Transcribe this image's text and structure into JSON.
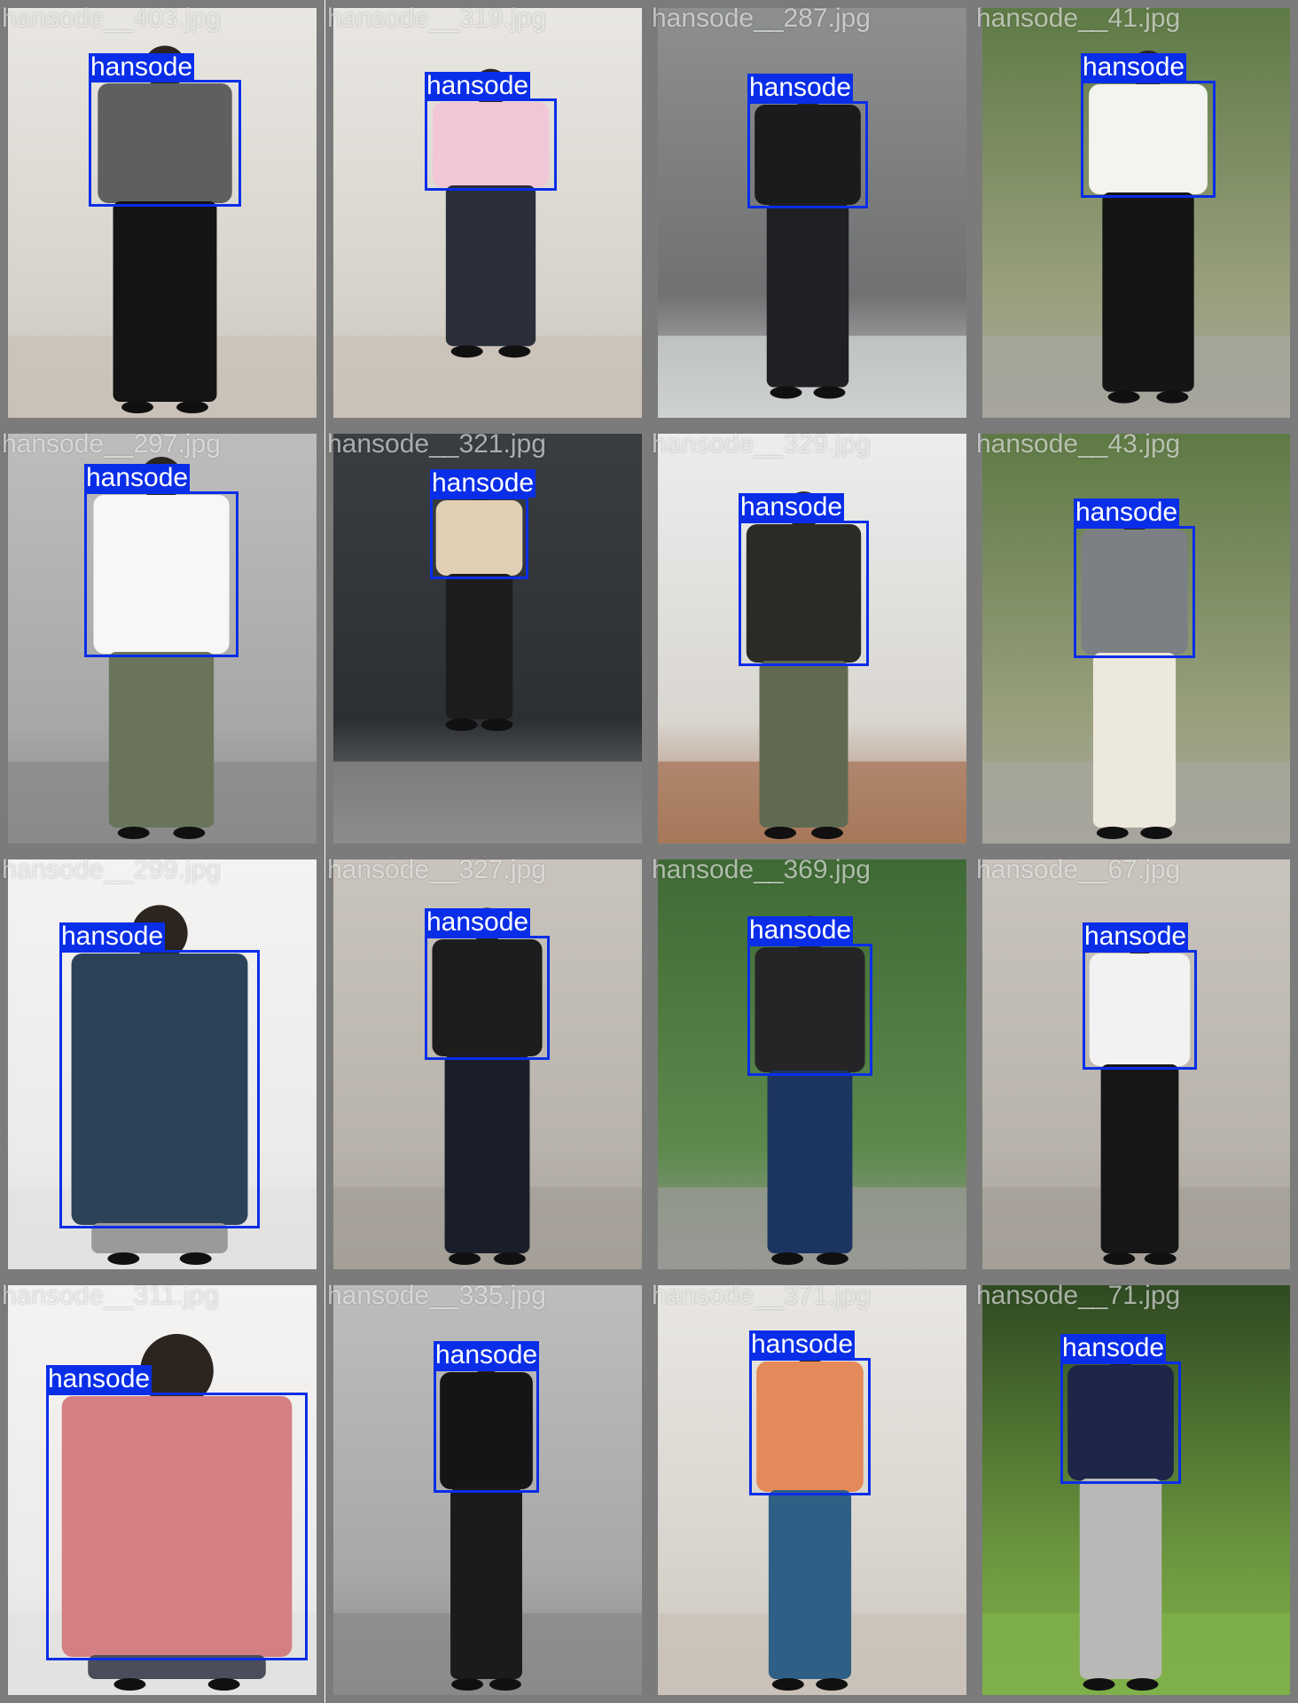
{
  "colors": {
    "box": "#0a2ee8",
    "frame": "#7b7b7b",
    "filename_text": "rgba(255,255,255,0.6)",
    "label_text": "#ffffff"
  },
  "tiles": [
    {
      "filename": "hansode__403.jpg",
      "label": "hansode",
      "scene": "white-wall-indoor",
      "top": "#5f5f5f",
      "bottom": "#141414"
    },
    {
      "filename": "hansode__319.jpg",
      "label": "hansode",
      "scene": "white-wall-indoor",
      "top": "#f1c6d6",
      "bottom": "#2a2f3a"
    },
    {
      "filename": "hansode__287.jpg",
      "label": "hansode",
      "scene": "pillar-street",
      "top": "#1b1b1b",
      "bottom": "#1f1f24"
    },
    {
      "filename": "hansode__41.jpg",
      "label": "hansode",
      "scene": "park-path",
      "top": "#f3f3ef",
      "bottom": "#151515"
    },
    {
      "filename": "hansode__297.jpg",
      "label": "hansode",
      "scene": "shutter",
      "top": "#f7f7f7",
      "bottom": "#69745a"
    },
    {
      "filename": "hansode__321.jpg",
      "label": "hansode",
      "scene": "dark-wall",
      "top": "#e0cfb4",
      "bottom": "#1c1c1c"
    },
    {
      "filename": "hansode__329.jpg",
      "label": "hansode",
      "scene": "shop-front",
      "top": "#2a2a26",
      "bottom": "#606a52"
    },
    {
      "filename": "hansode__43.jpg",
      "label": "hansode",
      "scene": "park-path",
      "top": "#7c8085",
      "bottom": "#ece8dc"
    },
    {
      "filename": "hansode__299.jpg",
      "label": "hansode",
      "scene": "studio",
      "top": "#2c4258",
      "bottom": "#9a9a9a"
    },
    {
      "filename": "hansode__327.jpg",
      "label": "hansode",
      "scene": "stone-wall",
      "top": "#1d1d1d",
      "bottom": "#1a1e2a"
    },
    {
      "filename": "hansode__369.jpg",
      "label": "hansode",
      "scene": "railing-green",
      "top": "#252528",
      "bottom": "#1c3460"
    },
    {
      "filename": "hansode__67.jpg",
      "label": "hansode",
      "scene": "stone-wall",
      "top": "#f2f2f2",
      "bottom": "#161616"
    },
    {
      "filename": "hansode__311.jpg",
      "label": "hansode",
      "scene": "studio",
      "top": "#d47f83",
      "bottom": "#4b4e5a"
    },
    {
      "filename": "hansode__335.jpg",
      "label": "hansode",
      "scene": "shutter",
      "top": "#151515",
      "bottom": "#1b1b1b"
    },
    {
      "filename": "hansode__371.jpg",
      "label": "hansode",
      "scene": "white-wall-indoor",
      "top": "#e3895a",
      "bottom": "#2f5f84"
    },
    {
      "filename": "hansode__71.jpg",
      "label": "hansode",
      "scene": "grass-park",
      "top": "#1d2648",
      "bottom": "#b8b8b6"
    }
  ]
}
